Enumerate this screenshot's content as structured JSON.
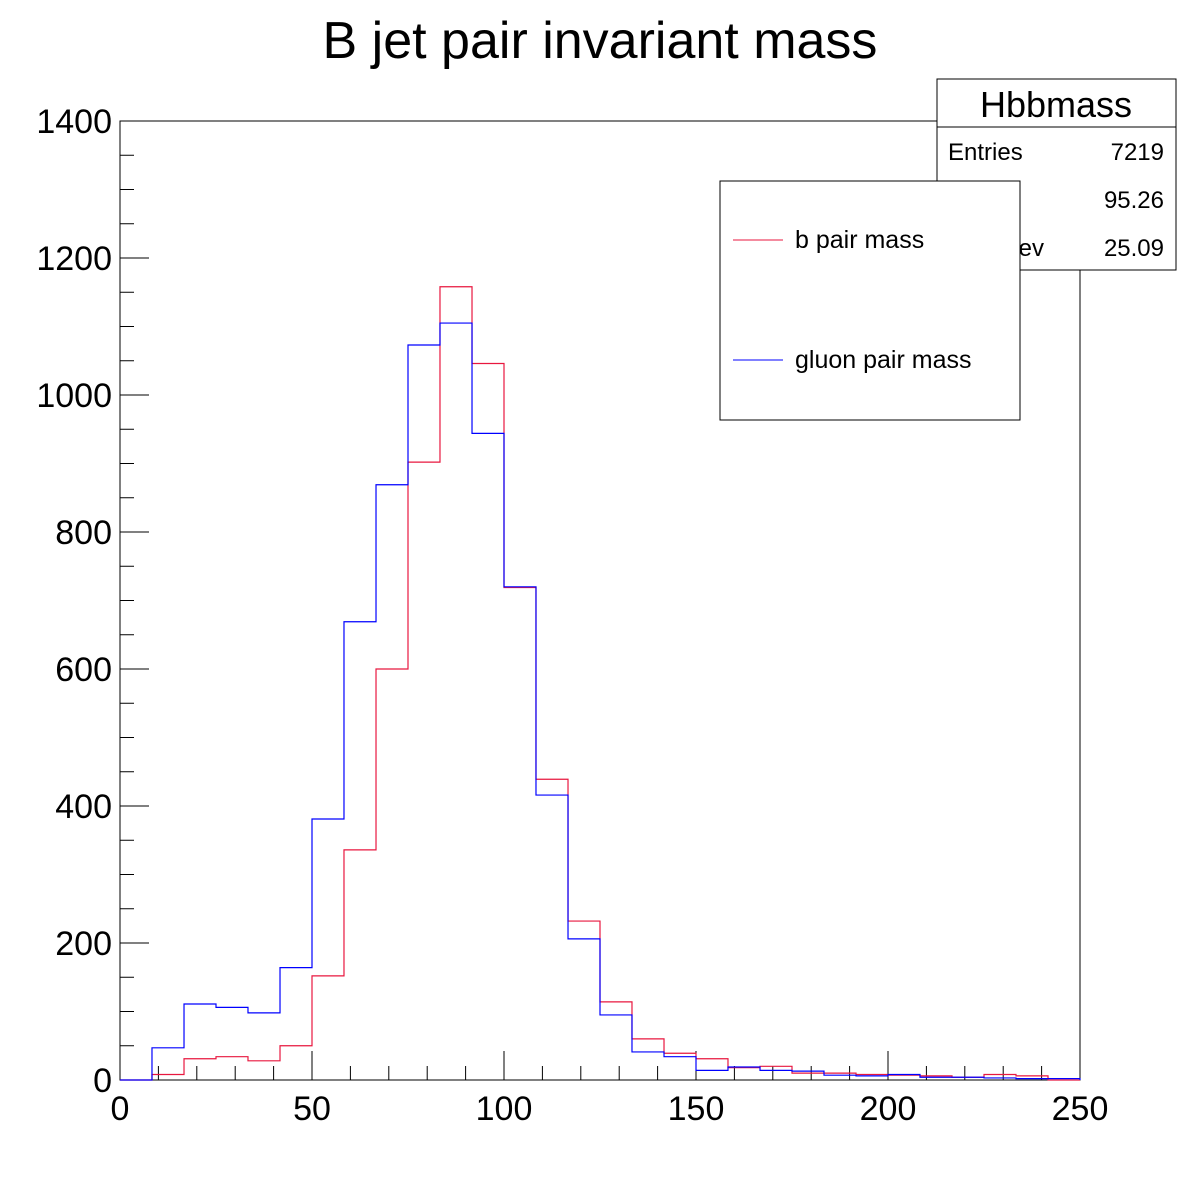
{
  "chart_data": {
    "type": "histogram",
    "title": "B jet pair invariant mass",
    "xlabel": "",
    "ylabel": "",
    "xlim": [
      0,
      250
    ],
    "ylim": [
      0,
      1400
    ],
    "x_ticks": [
      "0",
      "50",
      "100",
      "150",
      "200",
      "250"
    ],
    "y_ticks": [
      "0",
      "200",
      "400",
      "600",
      "800",
      "1000",
      "1200",
      "1400"
    ],
    "bin_edges": [
      0,
      8.33,
      16.67,
      25,
      33.33,
      41.67,
      50,
      58.33,
      66.67,
      75,
      83.33,
      91.67,
      100,
      108.33,
      116.67,
      125,
      133.33,
      141.67,
      150,
      158.33,
      166.67,
      175,
      183.33,
      191.67,
      200,
      208.33,
      216.67,
      225,
      233.33,
      241.67,
      250
    ],
    "series": [
      {
        "name": "b pair mass",
        "color": "#e8173f",
        "values": [
          0,
          8,
          31,
          34,
          28,
          50,
          152,
          336,
          600,
          902,
          1158,
          1046,
          719,
          439,
          232,
          114,
          60,
          39,
          31,
          18,
          20,
          10,
          10,
          8,
          7,
          6,
          4,
          8,
          6,
          0
        ]
      },
      {
        "name": "gluon pair mass",
        "color": "#0000ff",
        "values": [
          0,
          47,
          111,
          106,
          98,
          164,
          381,
          669,
          869,
          1073,
          1105,
          944,
          720,
          416,
          206,
          95,
          41,
          34,
          14,
          19,
          14,
          13,
          7,
          6,
          8,
          4,
          4,
          3,
          2,
          2
        ]
      }
    ],
    "legend": {
      "placement": "top-right",
      "entries": [
        "b pair mass",
        "gluon pair mass"
      ]
    },
    "stats_box": {
      "title": "Hbbmass",
      "rows": [
        {
          "label": "Entries",
          "value": "7219"
        },
        {
          "label": "",
          "value": "95.26"
        },
        {
          "label": "ev",
          "value": "25.09"
        }
      ]
    },
    "grid": false
  }
}
